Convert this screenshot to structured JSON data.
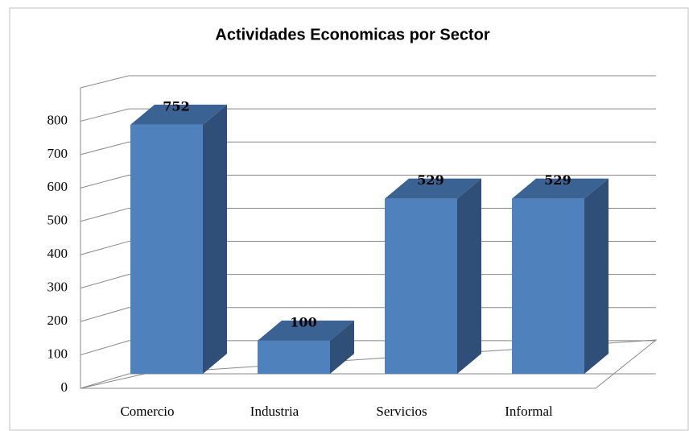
{
  "chart_data": {
    "type": "bar3d",
    "title": "Actividades Economicas por Sector",
    "categories": [
      "Comercio",
      "Industria",
      "Servicios",
      "Informal"
    ],
    "values": [
      752,
      100,
      529,
      529
    ],
    "color": "#4f81bd",
    "ylim": [
      0,
      900
    ],
    "yticks": [
      0,
      100,
      200,
      300,
      400,
      500,
      600,
      700,
      800
    ],
    "grid": true
  }
}
